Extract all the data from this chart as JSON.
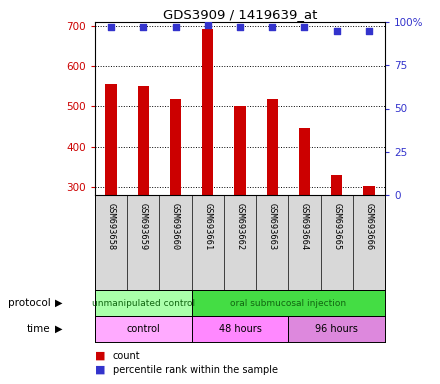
{
  "title": "GDS3909 / 1419639_at",
  "samples": [
    "GSM693658",
    "GSM693659",
    "GSM693660",
    "GSM693661",
    "GSM693662",
    "GSM693663",
    "GSM693664",
    "GSM693665",
    "GSM693666"
  ],
  "counts": [
    557,
    551,
    519,
    693,
    502,
    519,
    447,
    330,
    303
  ],
  "percentile_ranks": [
    97,
    97,
    97,
    98,
    97,
    97,
    97,
    95,
    95
  ],
  "ylim_left": [
    280,
    710
  ],
  "ylim_right": [
    0,
    100
  ],
  "yticks_left": [
    300,
    400,
    500,
    600,
    700
  ],
  "yticks_right": [
    0,
    25,
    50,
    75,
    100
  ],
  "ytick_right_labels": [
    "0",
    "25",
    "50",
    "75",
    "100%"
  ],
  "bar_color": "#cc0000",
  "dot_color": "#3333cc",
  "bar_width": 0.35,
  "protocol_groups": [
    {
      "label": "unmanipulated control",
      "start": 0,
      "end": 3,
      "color": "#aaffaa"
    },
    {
      "label": "oral submucosal injection",
      "start": 3,
      "end": 9,
      "color": "#44dd44"
    }
  ],
  "time_groups": [
    {
      "label": "control",
      "start": 0,
      "end": 3,
      "color": "#ffaaff"
    },
    {
      "label": "48 hours",
      "start": 3,
      "end": 6,
      "color": "#ff88ff"
    },
    {
      "label": "96 hours",
      "start": 6,
      "end": 9,
      "color": "#dd88dd"
    }
  ],
  "protocol_label": "protocol",
  "time_label": "time",
  "legend_count_label": "count",
  "legend_pct_label": "percentile rank within the sample",
  "grid_color": "#000000",
  "tick_color_left": "#cc0000",
  "tick_color_right": "#3333cc",
  "sample_bg_color": "#d8d8d8",
  "plot_bg": "#ffffff"
}
